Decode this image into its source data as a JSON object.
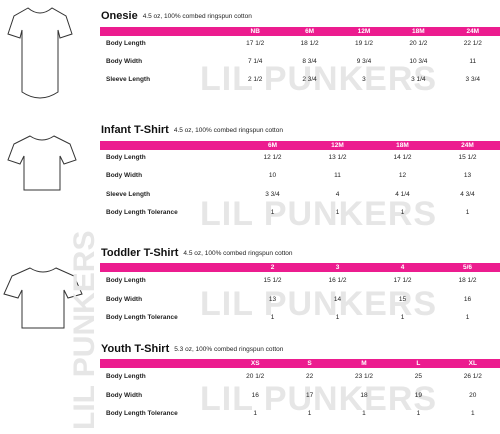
{
  "watermark": "LIL PUNKERS",
  "sections": [
    {
      "title": "Onesie",
      "subtitle": "4.5 oz, 100% combed ringspun cotton",
      "columns": [
        "NB",
        "6M",
        "12M",
        "18M",
        "24M"
      ],
      "rows": [
        {
          "label": "Body Length",
          "values": [
            "17 1/2",
            "18 1/2",
            "19 1/2",
            "20 1/2",
            "22 1/2"
          ]
        },
        {
          "label": "Body Width",
          "values": [
            "7 1/4",
            "8 3/4",
            "9 3/4",
            "10 3/4",
            "11"
          ]
        },
        {
          "label": "Sleeve Length",
          "values": [
            "2 1/2",
            "2 3/4",
            "3",
            "3 1/4",
            "3 3/4"
          ]
        }
      ]
    },
    {
      "title": "Infant T-Shirt",
      "subtitle": "4.5 oz, 100% combed ringspun cotton",
      "columns": [
        "6M",
        "12M",
        "18M",
        "24M"
      ],
      "rows": [
        {
          "label": "Body Length",
          "values": [
            "12 1/2",
            "13 1/2",
            "14 1/2",
            "15 1/2"
          ]
        },
        {
          "label": "Body Width",
          "values": [
            "10",
            "11",
            "12",
            "13"
          ]
        },
        {
          "label": "Sleeve Length",
          "values": [
            "3 3/4",
            "4",
            "4 1/4",
            "4 3/4"
          ]
        },
        {
          "label": "Body Length Tolerance",
          "values": [
            "1",
            "1",
            "1",
            "1"
          ]
        }
      ]
    },
    {
      "title": "Toddler T-Shirt",
      "subtitle": "4.5 oz, 100% combed ringspun cotton",
      "columns": [
        "2",
        "3",
        "4",
        "5/6"
      ],
      "rows": [
        {
          "label": "Body Length",
          "values": [
            "15 1/2",
            "16 1/2",
            "17 1/2",
            "18 1/2"
          ]
        },
        {
          "label": "Body Width",
          "values": [
            "13",
            "14",
            "15",
            "16"
          ]
        },
        {
          "label": "Body Length Tolerance",
          "values": [
            "1",
            "1",
            "1",
            "1"
          ]
        }
      ]
    },
    {
      "title": "Youth T-Shirt",
      "subtitle": "5.3 oz, 100% combed ringspun cotton",
      "columns": [
        "XS",
        "S",
        "M",
        "L",
        "XL"
      ],
      "rows": [
        {
          "label": "Body Length",
          "values": [
            "20 1/2",
            "22",
            "23 1/2",
            "25",
            "26 1/2"
          ]
        },
        {
          "label": "Body Width",
          "values": [
            "16",
            "17",
            "18",
            "19",
            "20"
          ]
        },
        {
          "label": "Body Length Tolerance",
          "values": [
            "1",
            "1",
            "1",
            "1",
            "1"
          ]
        }
      ]
    }
  ]
}
